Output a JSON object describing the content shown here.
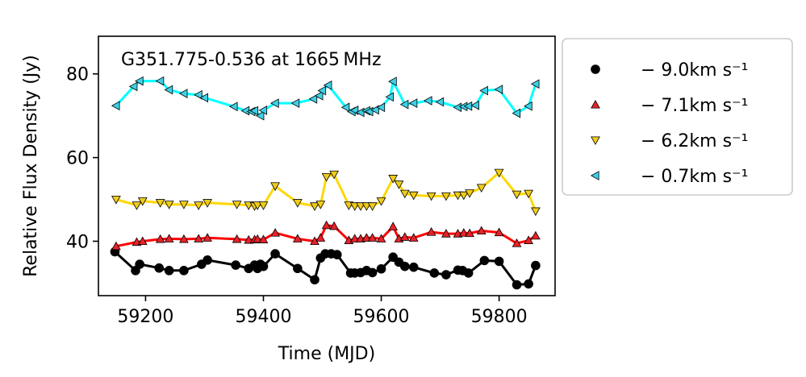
{
  "chart_data": {
    "type": "line",
    "title": "",
    "annotation": "G351.775-0.536 at 1665 MHz",
    "xlabel": "Time (MJD)",
    "ylabel": "Relative Flux Density (Jy)",
    "xlim": [
      59120,
      59895
    ],
    "ylim": [
      27,
      89
    ],
    "xticks": [
      59200,
      59400,
      59600,
      59800
    ],
    "yticks": [
      40,
      60,
      80
    ],
    "grid": false,
    "legend_position": "outside-right",
    "series": [
      {
        "name": "− 9.0km s⁻¹",
        "marker": "circle",
        "marker_color": "#000000",
        "line_color": "#000000",
        "x": [
          59148,
          59183,
          59190,
          59223,
          59240,
          59265,
          59295,
          59305,
          59353,
          59375,
          59385,
          59390,
          59395,
          59400,
          59420,
          59458,
          59487,
          59497,
          59505,
          59515,
          59525,
          59548,
          59555,
          59565,
          59575,
          59585,
          59600,
          59620,
          59630,
          59640,
          59655,
          59690,
          59710,
          59730,
          59738,
          59748,
          59775,
          59800,
          59830,
          59850,
          59862
        ],
        "y": [
          37.5,
          33.0,
          34.5,
          33.6,
          33.0,
          33.0,
          34.5,
          35.5,
          34.3,
          33.5,
          34.3,
          33.5,
          34.5,
          34.0,
          37.0,
          33.5,
          30.8,
          36.0,
          37.0,
          37.0,
          36.8,
          32.4,
          32.4,
          32.5,
          33.0,
          32.5,
          33.4,
          36.2,
          35.0,
          34.0,
          33.8,
          32.4,
          32.0,
          33.1,
          33.0,
          32.4,
          35.4,
          35.2,
          29.6,
          29.8,
          34.2
        ]
      },
      {
        "name": "− 7.1km s⁻¹",
        "marker": "triangle-up",
        "marker_color": "#e8222a",
        "line_color": "#ff0000",
        "x": [
          59150,
          59185,
          59195,
          59225,
          59240,
          59265,
          59290,
          59305,
          59355,
          59375,
          59385,
          59390,
          59400,
          59420,
          59458,
          59487,
          59497,
          59507,
          59520,
          59545,
          59555,
          59565,
          59575,
          59585,
          59600,
          59620,
          59630,
          59640,
          59655,
          59685,
          59710,
          59730,
          59740,
          59750,
          59770,
          59800,
          59830,
          59850,
          59862
        ],
        "y": [
          38.8,
          39.8,
          40.0,
          40.5,
          40.6,
          40.5,
          40.6,
          40.8,
          40.5,
          40.3,
          40.4,
          40.5,
          40.4,
          42.0,
          40.6,
          40.0,
          40.8,
          43.8,
          43.6,
          40.2,
          40.6,
          40.6,
          40.8,
          40.8,
          40.6,
          43.5,
          40.6,
          41.0,
          40.8,
          42.2,
          41.8,
          41.8,
          42.0,
          41.9,
          42.5,
          42.1,
          39.5,
          40.2,
          41.3
        ]
      },
      {
        "name": "− 6.2km s⁻¹",
        "marker": "triangle-down",
        "marker_color": "#f0cc1a",
        "line_color": "#ffd700",
        "x": [
          59150,
          59185,
          59195,
          59225,
          59240,
          59265,
          59290,
          59305,
          59355,
          59375,
          59385,
          59390,
          59400,
          59420,
          59458,
          59487,
          59497,
          59507,
          59520,
          59545,
          59555,
          59565,
          59575,
          59585,
          59600,
          59620,
          59630,
          59640,
          59655,
          59685,
          59710,
          59730,
          59740,
          59750,
          59770,
          59800,
          59830,
          59850,
          59862
        ],
        "y": [
          50.0,
          48.6,
          49.6,
          49.2,
          48.8,
          48.8,
          48.6,
          49.2,
          48.8,
          48.6,
          48.4,
          48.6,
          48.6,
          53.2,
          49.2,
          48.4,
          48.8,
          55.4,
          56.0,
          48.6,
          48.4,
          48.4,
          48.4,
          48.4,
          49.6,
          55.0,
          53.6,
          51.4,
          51.0,
          50.8,
          50.8,
          51.0,
          51.0,
          51.5,
          52.8,
          56.4,
          51.2,
          51.4,
          47.2
        ]
      },
      {
        "name": "− 0.7km s⁻¹",
        "marker": "triangle-left",
        "marker_color": "#3fd0e6",
        "line_color": "#00ffff",
        "x": [
          59150,
          59180,
          59190,
          59225,
          59240,
          59265,
          59290,
          59300,
          59350,
          59370,
          59380,
          59385,
          59395,
          59400,
          59420,
          59455,
          59485,
          59495,
          59500,
          59510,
          59540,
          59550,
          59555,
          59565,
          59575,
          59580,
          59590,
          59600,
          59615,
          59620,
          59640,
          59655,
          59680,
          59700,
          59730,
          59740,
          59748,
          59760,
          59775,
          59800,
          59830,
          59850,
          59862
        ],
        "y": [
          72.4,
          77.0,
          78.3,
          78.3,
          76.2,
          75.3,
          75.0,
          74.3,
          72.2,
          71.2,
          71.0,
          71.2,
          70.0,
          71.3,
          73.0,
          73.0,
          74.0,
          74.8,
          76.0,
          77.3,
          72.0,
          71.0,
          71.3,
          70.8,
          71.2,
          71.0,
          71.4,
          72.0,
          74.5,
          78.2,
          72.7,
          73.0,
          73.6,
          73.3,
          72.0,
          72.2,
          72.3,
          72.5,
          76.0,
          76.3,
          70.6,
          72.3,
          77.6
        ]
      }
    ]
  }
}
